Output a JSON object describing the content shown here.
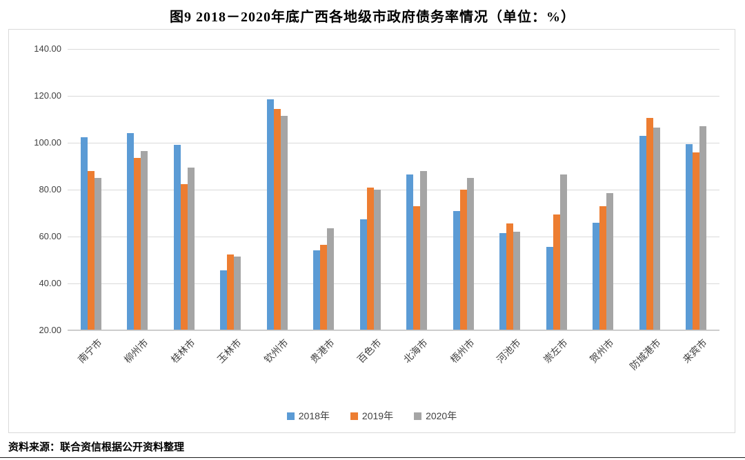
{
  "title": "图9  2018－2020年底广西各地级市政府债务率情况（单位：%）",
  "source_note": "资料来源：联合资信根据公开资料整理",
  "colors": {
    "series_2018": "#5B9BD5",
    "series_2019": "#ED7D31",
    "series_2020": "#A5A5A5",
    "gridline": "#D9D9D9",
    "frame_border": "#D9D9D9",
    "text": "#404040"
  },
  "chart_data": {
    "type": "bar",
    "title": "图9  2018－2020年底广西各地级市政府债务率情况（单位：%）",
    "xlabel": "",
    "ylabel": "",
    "categories": [
      "南宁市",
      "柳州市",
      "桂林市",
      "玉林市",
      "钦州市",
      "贵港市",
      "百色市",
      "北海市",
      "梧州市",
      "河池市",
      "崇左市",
      "贺州市",
      "防城港市",
      "来宾市"
    ],
    "series": [
      {
        "name": "2018年",
        "color": "#5B9BD5",
        "values": [
          102.5,
          104,
          99,
          45.5,
          118.5,
          54,
          67.5,
          86.5,
          71,
          61.5,
          55.5,
          66,
          103,
          99.5
        ]
      },
      {
        "name": "2019年",
        "color": "#ED7D31",
        "values": [
          88,
          93.5,
          82.5,
          52.5,
          114.5,
          56.5,
          81,
          73,
          80,
          65.5,
          69.5,
          73,
          110.5,
          96
        ]
      },
      {
        "name": "2020年",
        "color": "#A5A5A5",
        "values": [
          85,
          96.5,
          89.5,
          51.5,
          111.5,
          63.5,
          80,
          88,
          85,
          62,
          86.5,
          78.5,
          106.5,
          107
        ]
      }
    ],
    "ylim": [
      20,
      140
    ],
    "yticks": [
      20,
      40,
      60,
      80,
      100,
      120,
      140
    ],
    "ytick_decimals": 2,
    "grid": true,
    "legend_position": "bottom"
  }
}
